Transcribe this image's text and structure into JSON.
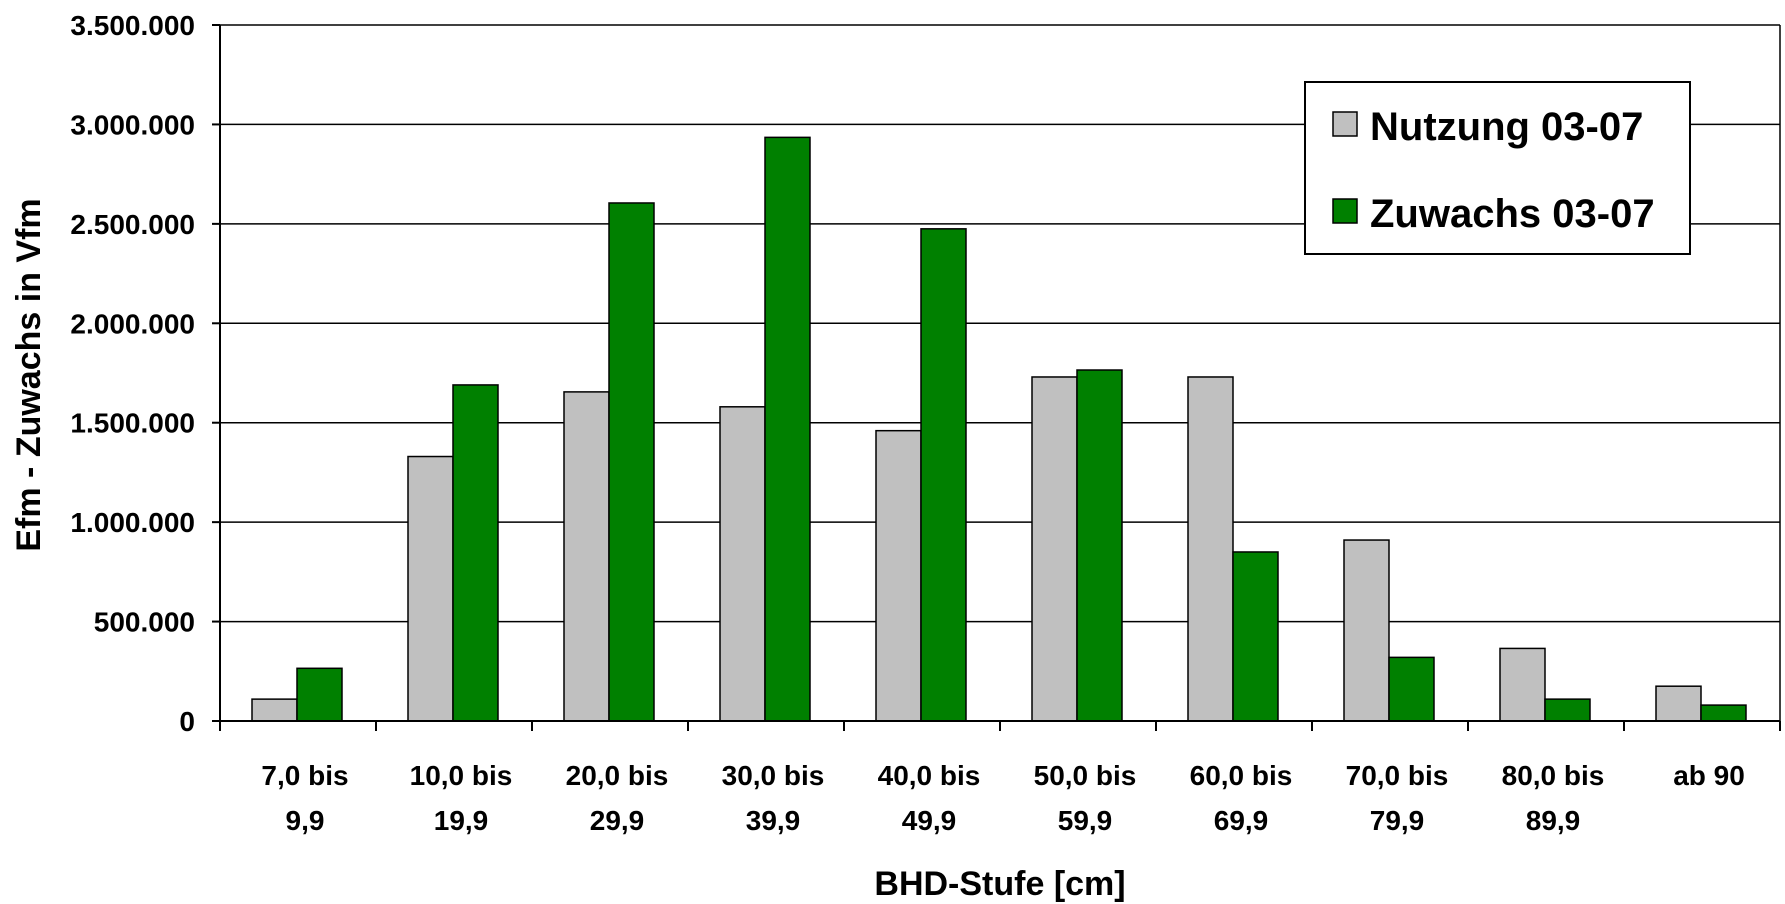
{
  "chart_data": {
    "type": "bar",
    "title": "",
    "xlabel": "BHD-Stufe [cm]",
    "ylabel": "Efm - Zuwachs in Vfm",
    "categories": [
      [
        "7,0 bis",
        "9,9"
      ],
      [
        "10,0 bis",
        "19,9"
      ],
      [
        "20,0 bis",
        "29,9"
      ],
      [
        "30,0 bis",
        "39,9"
      ],
      [
        "40,0 bis",
        "49,9"
      ],
      [
        "50,0 bis",
        "59,9"
      ],
      [
        "60,0 bis",
        "69,9"
      ],
      [
        "70,0 bis",
        "79,9"
      ],
      [
        "80,0 bis",
        "89,9"
      ],
      [
        "ab 90"
      ]
    ],
    "series": [
      {
        "name": "Nutzung 03-07",
        "color": "#c0c0c0",
        "values": [
          110000,
          1330000,
          1655000,
          1580000,
          1460000,
          1730000,
          1730000,
          910000,
          365000,
          175000
        ]
      },
      {
        "name": "Zuwachs 03-07",
        "color": "#008000",
        "values": [
          265000,
          1690000,
          2605000,
          2935000,
          2475000,
          1765000,
          850000,
          320000,
          110000,
          80000
        ]
      }
    ],
    "ylim": [
      0,
      3500000
    ],
    "yticks": [
      0,
      500000,
      1000000,
      1500000,
      2000000,
      2500000,
      3000000,
      3500000
    ],
    "ytick_labels": [
      "0",
      "500.000",
      "1.000.000",
      "1.500.000",
      "2.000.000",
      "2.500.000",
      "3.000.000",
      "3.500.000"
    ],
    "grid": true,
    "legend_position": "top-right"
  }
}
